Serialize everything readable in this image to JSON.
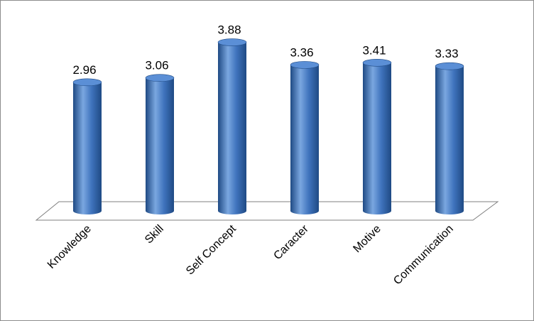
{
  "chart_data": {
    "type": "bar",
    "bar_style": "3d-cylinder",
    "title": "",
    "xlabel": "",
    "ylabel": "",
    "categories": [
      "Knowledge",
      "Skill",
      "Self Concept",
      "Caracter",
      "Motive",
      "Communication"
    ],
    "values": [
      2.96,
      3.06,
      3.88,
      3.36,
      3.41,
      3.33
    ],
    "value_labels": [
      "2.96",
      "3.06",
      "3.88",
      "3.36",
      "3.41",
      "3.33"
    ],
    "ylim": [
      0,
      4.2
    ],
    "grid": false,
    "legend": "none",
    "colors": {
      "bar_dark": "#1f4a84",
      "bar_mid": "#3f73bd",
      "bar_light": "#7aa7e0",
      "bar_top": "#5b8fd6",
      "floor_stroke": "#7f7f7f",
      "frame": "#8c8c8c"
    }
  }
}
